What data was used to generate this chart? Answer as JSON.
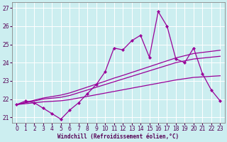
{
  "xlabel": "Windchill (Refroidissement éolien,°C)",
  "bg_color": "#cceef0",
  "line_color": "#990099",
  "grid_color": "#ffffff",
  "xlim": [
    -0.5,
    23.5
  ],
  "ylim": [
    20.7,
    27.3
  ],
  "yticks": [
    21,
    22,
    23,
    24,
    25,
    26,
    27
  ],
  "xticks": [
    0,
    1,
    2,
    3,
    4,
    5,
    6,
    7,
    8,
    9,
    10,
    11,
    12,
    13,
    14,
    15,
    16,
    17,
    18,
    19,
    20,
    21,
    22,
    23
  ],
  "series1_x": [
    0,
    1,
    2,
    3,
    4,
    5,
    6,
    7,
    8,
    9,
    10,
    11,
    12,
    13,
    14,
    15,
    16,
    17,
    18,
    19,
    20,
    21,
    22,
    23
  ],
  "series1_y": [
    21.7,
    21.9,
    21.8,
    21.5,
    21.2,
    20.9,
    21.4,
    21.8,
    22.3,
    22.8,
    23.5,
    24.8,
    24.7,
    25.2,
    25.5,
    24.3,
    26.8,
    26.0,
    24.2,
    24.0,
    24.8,
    23.4,
    22.5,
    21.9
  ],
  "series2_x": [
    0,
    1,
    2,
    3,
    4,
    5,
    6,
    7,
    8,
    9,
    10,
    11,
    12,
    13,
    14,
    15,
    16,
    17,
    18,
    19,
    20,
    21,
    22,
    23
  ],
  "series2_y": [
    21.7,
    21.8,
    21.9,
    22.0,
    22.05,
    22.1,
    22.2,
    22.35,
    22.5,
    22.65,
    22.8,
    22.95,
    23.1,
    23.25,
    23.4,
    23.55,
    23.7,
    23.85,
    24.0,
    24.1,
    24.2,
    24.25,
    24.3,
    24.35
  ],
  "series3_x": [
    0,
    1,
    2,
    3,
    4,
    5,
    6,
    7,
    8,
    9,
    10,
    11,
    12,
    13,
    14,
    15,
    16,
    17,
    18,
    19,
    20,
    21,
    22,
    23
  ],
  "series3_y": [
    21.7,
    21.82,
    21.94,
    22.06,
    22.14,
    22.22,
    22.34,
    22.5,
    22.66,
    22.82,
    22.98,
    23.15,
    23.3,
    23.46,
    23.62,
    23.78,
    23.94,
    24.1,
    24.26,
    24.38,
    24.5,
    24.56,
    24.62,
    24.68
  ],
  "series4_x": [
    0,
    1,
    2,
    3,
    4,
    5,
    6,
    7,
    8,
    9,
    10,
    11,
    12,
    13,
    14,
    15,
    16,
    17,
    18,
    19,
    20,
    21,
    22,
    23
  ],
  "series4_y": [
    21.7,
    21.75,
    21.8,
    21.85,
    21.88,
    21.91,
    21.97,
    22.06,
    22.15,
    22.24,
    22.33,
    22.42,
    22.51,
    22.6,
    22.69,
    22.78,
    22.87,
    22.96,
    23.05,
    23.12,
    23.19,
    23.22,
    23.25,
    23.28
  ]
}
